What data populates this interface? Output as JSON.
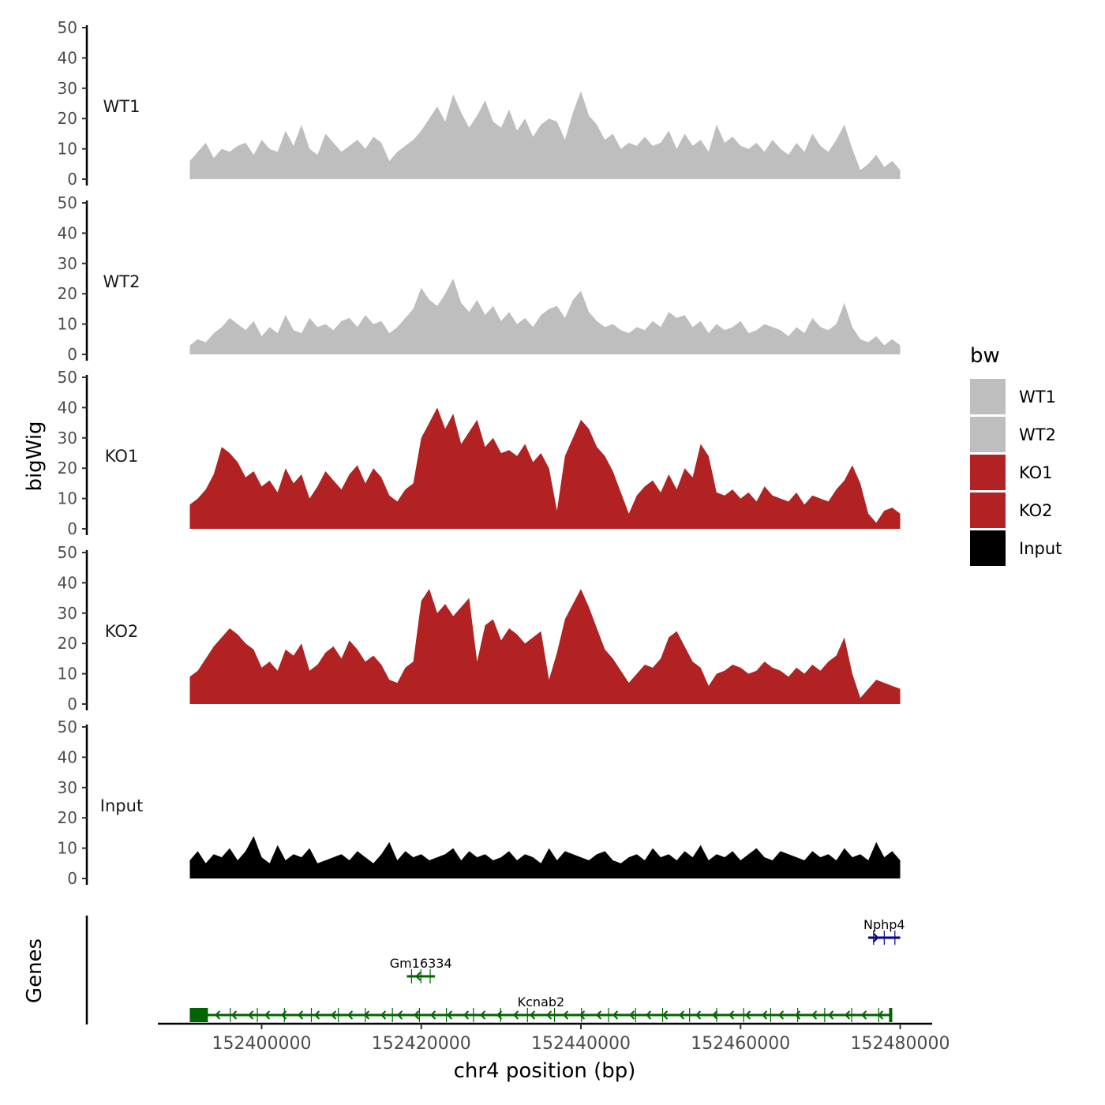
{
  "chart_data": {
    "type": "area",
    "layout": "stacked-tracks",
    "title": "",
    "ylabel": "bigWig",
    "xlabel": "chr4 position (bp)",
    "genes_label": "Genes",
    "xlim": [
      152391000,
      152480000
    ],
    "x_axis_range": [
      152387000,
      152484000
    ],
    "x_ticks": [
      152400000,
      152420000,
      152440000,
      152460000,
      152480000
    ],
    "x_tick_labels": [
      "152400000",
      "152420000",
      "152440000",
      "152460000",
      "152480000"
    ],
    "ylim": [
      0,
      50
    ],
    "y_ticks": [
      0,
      10,
      20,
      30,
      40,
      50
    ],
    "y_tick_labels": [
      "0",
      "10",
      "20",
      "30",
      "40",
      "50"
    ],
    "legend": {
      "title": "bw",
      "items": [
        {
          "label": "WT1",
          "color": "#BEBEBE"
        },
        {
          "label": "WT2",
          "color": "#BEBEBE"
        },
        {
          "label": "KO1",
          "color": "#B22222"
        },
        {
          "label": "KO2",
          "color": "#B22222"
        },
        {
          "label": "Input",
          "color": "#000000"
        }
      ]
    },
    "series": [
      {
        "name": "WT1",
        "color": "#BEBEBE",
        "x": [
          152391000,
          152392000,
          152393000,
          152394000,
          152395000,
          152396000,
          152397000,
          152398000,
          152399000,
          152400000,
          152401000,
          152402000,
          152403000,
          152404000,
          152405000,
          152406000,
          152407000,
          152408000,
          152409000,
          152410000,
          152411000,
          152412000,
          152413000,
          152414000,
          152415000,
          152416000,
          152417000,
          152418000,
          152419000,
          152420000,
          152421000,
          152422000,
          152423000,
          152424000,
          152425000,
          152426000,
          152427000,
          152428000,
          152429000,
          152430000,
          152431000,
          152432000,
          152433000,
          152434000,
          152435000,
          152436000,
          152437000,
          152438000,
          152439000,
          152440000,
          152441000,
          152442000,
          152443000,
          152444000,
          152445000,
          152446000,
          152447000,
          152448000,
          152449000,
          152450000,
          152451000,
          152452000,
          152453000,
          152454000,
          152455000,
          152456000,
          152457000,
          152458000,
          152459000,
          152460000,
          152461000,
          152462000,
          152463000,
          152464000,
          152465000,
          152466000,
          152467000,
          152468000,
          152469000,
          152470000,
          152471000,
          152472000,
          152473000,
          152474000,
          152475000,
          152476000,
          152477000,
          152478000,
          152479000,
          152480000
        ],
        "values": [
          6,
          9,
          12,
          7,
          10,
          9,
          11,
          12,
          8,
          13,
          10,
          9,
          16,
          11,
          18,
          10,
          8,
          15,
          12,
          9,
          11,
          13,
          10,
          14,
          12,
          6,
          9,
          11,
          13,
          16,
          20,
          24,
          19,
          28,
          22,
          17,
          21,
          26,
          19,
          17,
          23,
          16,
          20,
          14,
          18,
          20,
          19,
          13,
          22,
          29,
          21,
          18,
          13,
          15,
          10,
          12,
          11,
          14,
          11,
          12,
          16,
          10,
          15,
          11,
          13,
          9,
          18,
          12,
          14,
          11,
          10,
          12,
          9,
          13,
          10,
          8,
          12,
          9,
          15,
          11,
          9,
          13,
          18,
          10,
          3,
          5,
          8,
          4,
          6,
          3
        ]
      },
      {
        "name": "WT2",
        "color": "#BEBEBE",
        "x": [
          152391000,
          152392000,
          152393000,
          152394000,
          152395000,
          152396000,
          152397000,
          152398000,
          152399000,
          152400000,
          152401000,
          152402000,
          152403000,
          152404000,
          152405000,
          152406000,
          152407000,
          152408000,
          152409000,
          152410000,
          152411000,
          152412000,
          152413000,
          152414000,
          152415000,
          152416000,
          152417000,
          152418000,
          152419000,
          152420000,
          152421000,
          152422000,
          152423000,
          152424000,
          152425000,
          152426000,
          152427000,
          152428000,
          152429000,
          152430000,
          152431000,
          152432000,
          152433000,
          152434000,
          152435000,
          152436000,
          152437000,
          152438000,
          152439000,
          152440000,
          152441000,
          152442000,
          152443000,
          152444000,
          152445000,
          152446000,
          152447000,
          152448000,
          152449000,
          152450000,
          152451000,
          152452000,
          152453000,
          152454000,
          152455000,
          152456000,
          152457000,
          152458000,
          152459000,
          152460000,
          152461000,
          152462000,
          152463000,
          152464000,
          152465000,
          152466000,
          152467000,
          152468000,
          152469000,
          152470000,
          152471000,
          152472000,
          152473000,
          152474000,
          152475000,
          152476000,
          152477000,
          152478000,
          152479000,
          152480000
        ],
        "values": [
          3,
          5,
          4,
          7,
          9,
          12,
          10,
          8,
          11,
          6,
          9,
          7,
          13,
          8,
          7,
          12,
          9,
          10,
          8,
          11,
          12,
          9,
          13,
          10,
          11,
          7,
          9,
          12,
          15,
          22,
          18,
          16,
          20,
          25,
          17,
          14,
          18,
          13,
          16,
          11,
          14,
          10,
          12,
          9,
          13,
          15,
          16,
          12,
          18,
          21,
          14,
          11,
          9,
          10,
          8,
          7,
          9,
          8,
          11,
          9,
          14,
          12,
          13,
          9,
          11,
          7,
          10,
          8,
          9,
          11,
          7,
          8,
          10,
          9,
          8,
          6,
          9,
          7,
          12,
          9,
          8,
          10,
          17,
          9,
          5,
          4,
          6,
          3,
          5,
          3
        ]
      },
      {
        "name": "KO1",
        "color": "#B22222",
        "x": [
          152391000,
          152392000,
          152393000,
          152394000,
          152395000,
          152396000,
          152397000,
          152398000,
          152399000,
          152400000,
          152401000,
          152402000,
          152403000,
          152404000,
          152405000,
          152406000,
          152407000,
          152408000,
          152409000,
          152410000,
          152411000,
          152412000,
          152413000,
          152414000,
          152415000,
          152416000,
          152417000,
          152418000,
          152419000,
          152420000,
          152421000,
          152422000,
          152423000,
          152424000,
          152425000,
          152426000,
          152427000,
          152428000,
          152429000,
          152430000,
          152431000,
          152432000,
          152433000,
          152434000,
          152435000,
          152436000,
          152437000,
          152438000,
          152439000,
          152440000,
          152441000,
          152442000,
          152443000,
          152444000,
          152445000,
          152446000,
          152447000,
          152448000,
          152449000,
          152450000,
          152451000,
          152452000,
          152453000,
          152454000,
          152455000,
          152456000,
          152457000,
          152458000,
          152459000,
          152460000,
          152461000,
          152462000,
          152463000,
          152464000,
          152465000,
          152466000,
          152467000,
          152468000,
          152469000,
          152470000,
          152471000,
          152472000,
          152473000,
          152474000,
          152475000,
          152476000,
          152477000,
          152478000,
          152479000,
          152480000
        ],
        "values": [
          8,
          10,
          13,
          18,
          27,
          25,
          22,
          17,
          19,
          14,
          16,
          12,
          20,
          15,
          18,
          10,
          14,
          19,
          16,
          13,
          18,
          21,
          15,
          20,
          17,
          11,
          9,
          13,
          15,
          30,
          35,
          40,
          33,
          38,
          28,
          32,
          36,
          27,
          30,
          25,
          26,
          24,
          28,
          22,
          25,
          20,
          6,
          24,
          30,
          36,
          33,
          27,
          24,
          19,
          12,
          5,
          11,
          14,
          16,
          12,
          18,
          13,
          20,
          17,
          28,
          24,
          12,
          11,
          13,
          10,
          12,
          9,
          14,
          11,
          10,
          9,
          12,
          8,
          11,
          10,
          9,
          13,
          16,
          21,
          15,
          5,
          2,
          6,
          7,
          5
        ]
      },
      {
        "name": "KO2",
        "color": "#B22222",
        "x": [
          152391000,
          152392000,
          152393000,
          152394000,
          152395000,
          152396000,
          152397000,
          152398000,
          152399000,
          152400000,
          152401000,
          152402000,
          152403000,
          152404000,
          152405000,
          152406000,
          152407000,
          152408000,
          152409000,
          152410000,
          152411000,
          152412000,
          152413000,
          152414000,
          152415000,
          152416000,
          152417000,
          152418000,
          152419000,
          152420000,
          152421000,
          152422000,
          152423000,
          152424000,
          152425000,
          152426000,
          152427000,
          152428000,
          152429000,
          152430000,
          152431000,
          152432000,
          152433000,
          152434000,
          152435000,
          152436000,
          152437000,
          152438000,
          152439000,
          152440000,
          152441000,
          152442000,
          152443000,
          152444000,
          152445000,
          152446000,
          152447000,
          152448000,
          152449000,
          152450000,
          152451000,
          152452000,
          152453000,
          152454000,
          152455000,
          152456000,
          152457000,
          152458000,
          152459000,
          152460000,
          152461000,
          152462000,
          152463000,
          152464000,
          152465000,
          152466000,
          152467000,
          152468000,
          152469000,
          152470000,
          152471000,
          152472000,
          152473000,
          152474000,
          152475000,
          152476000,
          152477000,
          152478000,
          152479000,
          152480000
        ],
        "values": [
          9,
          11,
          15,
          19,
          22,
          25,
          23,
          20,
          18,
          12,
          14,
          11,
          18,
          16,
          20,
          11,
          13,
          17,
          19,
          15,
          21,
          18,
          14,
          16,
          13,
          8,
          7,
          12,
          14,
          34,
          38,
          30,
          33,
          29,
          32,
          35,
          14,
          26,
          28,
          21,
          25,
          23,
          20,
          22,
          24,
          8,
          17,
          28,
          33,
          38,
          32,
          25,
          18,
          15,
          11,
          7,
          10,
          13,
          12,
          15,
          22,
          24,
          19,
          14,
          12,
          6,
          10,
          11,
          13,
          12,
          10,
          11,
          14,
          12,
          11,
          9,
          12,
          10,
          13,
          11,
          14,
          16,
          22,
          10,
          2,
          5,
          8,
          7,
          6,
          5
        ]
      },
      {
        "name": "Input",
        "color": "#000000",
        "x": [
          152391000,
          152392000,
          152393000,
          152394000,
          152395000,
          152396000,
          152397000,
          152398000,
          152399000,
          152400000,
          152401000,
          152402000,
          152403000,
          152404000,
          152405000,
          152406000,
          152407000,
          152408000,
          152409000,
          152410000,
          152411000,
          152412000,
          152413000,
          152414000,
          152415000,
          152416000,
          152417000,
          152418000,
          152419000,
          152420000,
          152421000,
          152422000,
          152423000,
          152424000,
          152425000,
          152426000,
          152427000,
          152428000,
          152429000,
          152430000,
          152431000,
          152432000,
          152433000,
          152434000,
          152435000,
          152436000,
          152437000,
          152438000,
          152439000,
          152440000,
          152441000,
          152442000,
          152443000,
          152444000,
          152445000,
          152446000,
          152447000,
          152448000,
          152449000,
          152450000,
          152451000,
          152452000,
          152453000,
          152454000,
          152455000,
          152456000,
          152457000,
          152458000,
          152459000,
          152460000,
          152461000,
          152462000,
          152463000,
          152464000,
          152465000,
          152466000,
          152467000,
          152468000,
          152469000,
          152470000,
          152471000,
          152472000,
          152473000,
          152474000,
          152475000,
          152476000,
          152477000,
          152478000,
          152479000,
          152480000
        ],
        "values": [
          6,
          9,
          5,
          8,
          7,
          10,
          6,
          9,
          14,
          7,
          5,
          11,
          6,
          8,
          7,
          10,
          5,
          6,
          7,
          8,
          6,
          9,
          7,
          5,
          8,
          12,
          6,
          9,
          7,
          8,
          6,
          7,
          8,
          10,
          6,
          9,
          7,
          8,
          6,
          7,
          9,
          6,
          8,
          7,
          5,
          10,
          6,
          9,
          8,
          7,
          6,
          8,
          9,
          6,
          5,
          7,
          8,
          6,
          10,
          7,
          8,
          6,
          9,
          7,
          11,
          6,
          8,
          7,
          9,
          6,
          8,
          10,
          7,
          6,
          9,
          8,
          7,
          6,
          9,
          7,
          8,
          6,
          10,
          7,
          8,
          6,
          12,
          7,
          9,
          6
        ]
      }
    ],
    "genes": [
      {
        "name": "Nphp4",
        "strand": "+",
        "start": 152476000,
        "end": 152480000,
        "color": "#00008B",
        "row": 1
      },
      {
        "name": "Gm16334",
        "strand": "-",
        "start": 152418200,
        "end": 152421700,
        "color": "#006400",
        "row": 2
      },
      {
        "name": "Kcnab2",
        "strand": "-",
        "start": 152391000,
        "end": 152479000,
        "color": "#006400",
        "row": 3
      }
    ]
  }
}
